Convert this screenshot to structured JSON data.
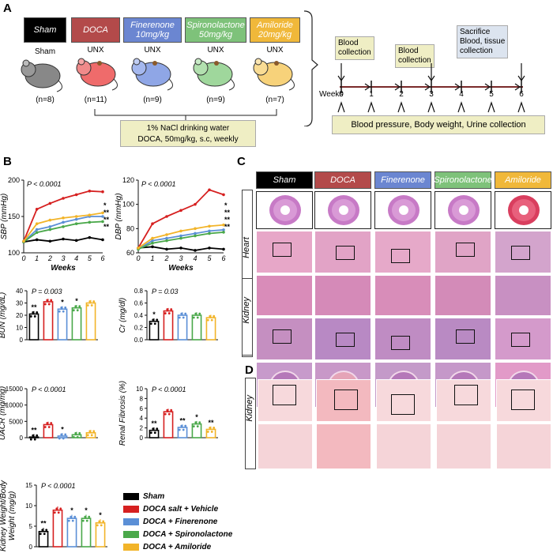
{
  "panels": {
    "a": "A",
    "b": "B",
    "c": "C",
    "d": "D"
  },
  "groups": [
    {
      "label": "Sham",
      "color": "#000000",
      "n": "(n=8)",
      "sub": "Sham"
    },
    {
      "label": "DOCA",
      "color": "#b34a4a",
      "n": "(n=11)",
      "sub": "UNX"
    },
    {
      "label": "Finerenone\n10mg/kg",
      "color": "#6b86d1",
      "n": "(n=9)",
      "sub": "UNX"
    },
    {
      "label": "Spironolactone\n50mg/kg",
      "color": "#7ec27a",
      "n": "(n=9)",
      "sub": "UNX"
    },
    {
      "label": "Amiloride\n20mg/kg",
      "color": "#f0b83a",
      "n": "(n=7)",
      "sub": "UNX"
    }
  ],
  "treatment_box": {
    "line1": "1% NaCl drinking water",
    "line2": "DOCA, 50mg/kg, s.c, weekly"
  },
  "timeline": {
    "weeks_label": "Weeks",
    "ticks": [
      "0",
      "1",
      "2",
      "3",
      "4",
      "5",
      "6"
    ],
    "blood1": "Blood\ncollection",
    "blood2": "Blood\ncollection",
    "sacrifice": "Sacrifice\nBlood, tissue\ncollection",
    "bottom": "Blood pressure, Body weight, Urine collection"
  },
  "colors": {
    "sham": "#000000",
    "vehicle": "#d62020",
    "finerenone": "#5b8fd6",
    "spironolactone": "#4aa84a",
    "amiloride": "#f2b429",
    "boxfill": "#efeec4"
  },
  "chart_data": [
    {
      "type": "line",
      "ylabel": "SBP (mmHg)",
      "xlabel": "Weeks",
      "p": "P < 0.0001",
      "x": [
        0,
        1,
        2,
        3,
        4,
        5,
        6
      ],
      "ylim": [
        100,
        200
      ],
      "yticks": [
        "100",
        "150",
        "200"
      ],
      "series": [
        {
          "name": "Sham",
          "values": [
            115,
            118,
            116,
            119,
            117,
            121,
            118
          ]
        },
        {
          "name": "DOCA salt + Vehicle",
          "values": [
            116,
            160,
            168,
            175,
            180,
            185,
            184
          ]
        },
        {
          "name": "DOCA + Finerenone",
          "values": [
            115,
            132,
            136,
            142,
            146,
            150,
            150
          ]
        },
        {
          "name": "DOCA + Spironolactone",
          "values": [
            115,
            128,
            132,
            136,
            140,
            142,
            143
          ]
        },
        {
          "name": "DOCA + Amiloride",
          "values": [
            116,
            140,
            145,
            148,
            150,
            152,
            155
          ]
        }
      ],
      "marks": [
        "*",
        "**",
        "**",
        "**"
      ]
    },
    {
      "type": "line",
      "ylabel": "DBP (mmHg)",
      "xlabel": "Weeks",
      "p": "P < 0.0001",
      "x": [
        0,
        1,
        2,
        3,
        4,
        5,
        6
      ],
      "ylim": [
        60,
        120
      ],
      "yticks": [
        "60",
        "80",
        "100",
        "120"
      ],
      "series": [
        {
          "name": "Sham",
          "values": [
            64,
            65,
            63,
            64,
            62,
            64,
            63
          ]
        },
        {
          "name": "DOCA salt + Vehicle",
          "values": [
            64,
            84,
            90,
            95,
            100,
            112,
            108
          ]
        },
        {
          "name": "DOCA + Finerenone",
          "values": [
            63,
            70,
            72,
            74,
            76,
            78,
            79
          ]
        },
        {
          "name": "DOCA + Spironolactone",
          "values": [
            63,
            68,
            70,
            72,
            74,
            76,
            77
          ]
        },
        {
          "name": "DOCA + Amiloride",
          "values": [
            64,
            72,
            75,
            78,
            80,
            82,
            83
          ]
        }
      ],
      "marks": [
        "*",
        "**",
        "**",
        "**"
      ]
    },
    {
      "type": "bar",
      "ylabel": "BUN (mg/dL)",
      "p": "P = 0.003",
      "ylim": [
        0,
        40
      ],
      "yticks": [
        "0",
        "10",
        "20",
        "30",
        "40"
      ],
      "values": [
        21,
        31,
        25,
        26,
        30
      ],
      "marks": [
        "**",
        "",
        "*",
        "*",
        ""
      ]
    },
    {
      "type": "bar",
      "ylabel": "Cr (mg/dl)",
      "p": "P = 0.03",
      "ylim": [
        0,
        0.8
      ],
      "yticks": [
        "0.0",
        "0.2",
        "0.4",
        "0.6",
        "0.8"
      ],
      "values": [
        0.3,
        0.47,
        0.4,
        0.4,
        0.36
      ],
      "marks": [
        "*",
        "",
        "",
        "",
        ""
      ]
    },
    {
      "type": "bar",
      "ylabel": "UACR (mg/mg)",
      "p": "P < 0.0001",
      "ylim": [
        0,
        15000
      ],
      "yticks": [
        "0",
        "5000",
        "10000",
        "15000"
      ],
      "values": [
        200,
        4000,
        500,
        900,
        1500
      ],
      "marks": [
        "**",
        "",
        "*",
        "",
        ""
      ]
    },
    {
      "type": "bar",
      "ylabel": "Renal Fibrosis (%)",
      "p": "P < 0.0001",
      "ylim": [
        0,
        10
      ],
      "yticks": [
        "0",
        "2",
        "4",
        "6",
        "8",
        "10"
      ],
      "values": [
        1.5,
        5.3,
        2.1,
        2.8,
        1.7
      ],
      "marks": [
        "**",
        "",
        "**",
        "*",
        "**"
      ]
    },
    {
      "type": "bar",
      "ylabel": "Kidney Weight/Body\nWeight (mg/g)",
      "p": "P < 0.0001",
      "ylim": [
        0,
        15
      ],
      "yticks": [
        "0",
        "5",
        "10",
        "15"
      ],
      "values": [
        3.7,
        8.9,
        6.9,
        6.9,
        5.8
      ],
      "marks": [
        "**",
        "",
        "*",
        "*",
        "*"
      ]
    }
  ],
  "legend": [
    "Sham",
    "DOCA salt + Vehicle",
    "DOCA + Finerenone",
    "DOCA + Spironolactone",
    "DOCA + Amiloride"
  ],
  "histology": {
    "columns": [
      {
        "label": "Sham",
        "bg": "#000000",
        "fg": "#ffffff"
      },
      {
        "label": "DOCA",
        "bg": "#b34a4a",
        "fg": "#ffffff"
      },
      {
        "label": "Finerenone",
        "bg": "#6b86d1",
        "fg": "#ffffff"
      },
      {
        "label": "Spironolactone",
        "bg": "#7ec27a",
        "fg": "#ffffff"
      },
      {
        "label": "Amiloride",
        "bg": "#f0b83a",
        "fg": "#ffffff"
      }
    ],
    "heart": "Heart",
    "kidney": "Kidney",
    "kidney_d": "Kidney"
  }
}
